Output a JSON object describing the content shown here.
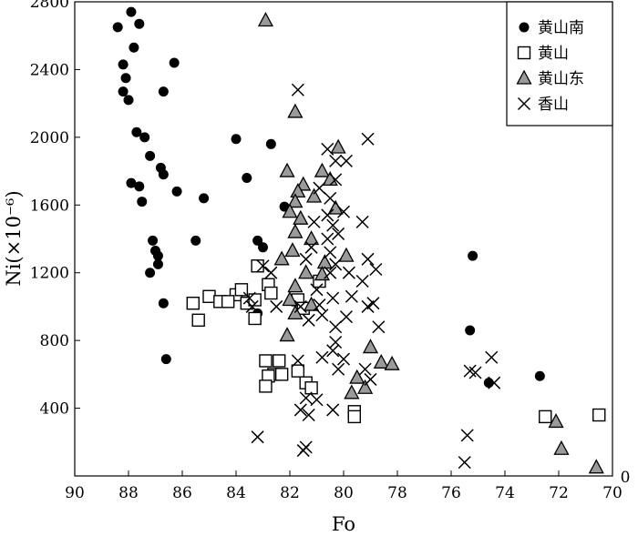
{
  "chart_data": {
    "type": "scatter",
    "title": "",
    "xlabel": "Fo",
    "ylabel": "Ni(×10⁻⁶)",
    "x_reversed": true,
    "xlim": [
      70,
      90
    ],
    "ylim": [
      0,
      2800
    ],
    "x_ticks": [
      "90",
      "88",
      "86",
      "84",
      "82",
      "80",
      "78",
      "76",
      "74",
      "72",
      "70"
    ],
    "y_ticks": [
      "2800",
      "2400",
      "2000",
      "1600",
      "1200",
      "800",
      "400"
    ],
    "y_zero_label": "0",
    "legend_position": "top-right",
    "grid": false,
    "series": [
      {
        "name": "黄山南",
        "marker": "circle",
        "points": [
          [
            88.4,
            2650
          ],
          [
            87.9,
            2740
          ],
          [
            87.6,
            2670
          ],
          [
            87.8,
            2530
          ],
          [
            88.2,
            2430
          ],
          [
            88.1,
            2350
          ],
          [
            88.2,
            2270
          ],
          [
            88.0,
            2220
          ],
          [
            86.7,
            2270
          ],
          [
            86.3,
            2440
          ],
          [
            87.7,
            2030
          ],
          [
            87.4,
            2000
          ],
          [
            87.2,
            1890
          ],
          [
            86.8,
            1820
          ],
          [
            86.7,
            1780
          ],
          [
            87.9,
            1730
          ],
          [
            87.6,
            1710
          ],
          [
            87.5,
            1620
          ],
          [
            86.2,
            1680
          ],
          [
            85.5,
            1390
          ],
          [
            87.1,
            1390
          ],
          [
            87.0,
            1330
          ],
          [
            86.9,
            1300
          ],
          [
            87.2,
            1200
          ],
          [
            86.9,
            1250
          ],
          [
            86.7,
            1020
          ],
          [
            86.6,
            690
          ],
          [
            85.2,
            1640
          ],
          [
            84.0,
            1990
          ],
          [
            83.6,
            1760
          ],
          [
            83.2,
            1390
          ],
          [
            83.0,
            1350
          ],
          [
            83.2,
            960
          ],
          [
            82.7,
            1960
          ],
          [
            82.2,
            1590
          ],
          [
            75.2,
            1300
          ],
          [
            75.3,
            860
          ],
          [
            74.6,
            550
          ],
          [
            72.7,
            590
          ]
        ]
      },
      {
        "name": "黄山",
        "marker": "square",
        "points": [
          [
            85.0,
            1060
          ],
          [
            84.6,
            1030
          ],
          [
            84.0,
            1070
          ],
          [
            84.3,
            1030
          ],
          [
            85.6,
            1020
          ],
          [
            83.6,
            1020
          ],
          [
            85.4,
            920
          ],
          [
            83.3,
            930
          ],
          [
            83.2,
            1240
          ],
          [
            83.8,
            1100
          ],
          [
            83.3,
            1040
          ],
          [
            82.8,
            1130
          ],
          [
            82.7,
            1080
          ],
          [
            81.7,
            1040
          ],
          [
            81.5,
            990
          ],
          [
            80.9,
            1150
          ],
          [
            82.9,
            680
          ],
          [
            82.4,
            680
          ],
          [
            82.6,
            600
          ],
          [
            82.8,
            590
          ],
          [
            82.3,
            600
          ],
          [
            82.9,
            530
          ],
          [
            81.7,
            620
          ],
          [
            81.4,
            550
          ],
          [
            81.2,
            520
          ],
          [
            79.6,
            380
          ],
          [
            79.6,
            350
          ],
          [
            72.5,
            350
          ],
          [
            70.5,
            360
          ]
        ]
      },
      {
        "name": "黄山东",
        "marker": "triangle",
        "points": [
          [
            82.9,
            2690
          ],
          [
            81.8,
            2150
          ],
          [
            82.1,
            1800
          ],
          [
            81.5,
            1720
          ],
          [
            80.8,
            1800
          ],
          [
            81.7,
            1680
          ],
          [
            81.1,
            1650
          ],
          [
            81.8,
            1620
          ],
          [
            82.0,
            1560
          ],
          [
            81.6,
            1520
          ],
          [
            81.8,
            1440
          ],
          [
            81.2,
            1400
          ],
          [
            81.9,
            1330
          ],
          [
            82.3,
            1280
          ],
          [
            80.7,
            1260
          ],
          [
            81.4,
            1200
          ],
          [
            80.8,
            1190
          ],
          [
            81.8,
            1120
          ],
          [
            82.0,
            1040
          ],
          [
            81.8,
            960
          ],
          [
            81.2,
            1010
          ],
          [
            82.1,
            830
          ],
          [
            80.2,
            1940
          ],
          [
            80.5,
            1750
          ],
          [
            80.3,
            1580
          ],
          [
            79.9,
            1300
          ],
          [
            79.0,
            760
          ],
          [
            78.6,
            670
          ],
          [
            78.2,
            660
          ],
          [
            79.5,
            580
          ],
          [
            79.2,
            520
          ],
          [
            79.7,
            490
          ],
          [
            72.1,
            320
          ],
          [
            71.9,
            160
          ],
          [
            70.6,
            50
          ]
        ]
      },
      {
        "name": "香山",
        "marker": "x",
        "points": [
          [
            81.7,
            2280
          ],
          [
            79.1,
            1990
          ],
          [
            79.9,
            1860
          ],
          [
            80.6,
            1930
          ],
          [
            80.3,
            1860
          ],
          [
            80.3,
            1750
          ],
          [
            80.9,
            1700
          ],
          [
            80.5,
            1640
          ],
          [
            80.0,
            1560
          ],
          [
            80.6,
            1540
          ],
          [
            81.1,
            1500
          ],
          [
            79.3,
            1500
          ],
          [
            80.4,
            1480
          ],
          [
            80.2,
            1430
          ],
          [
            80.6,
            1400
          ],
          [
            81.2,
            1350
          ],
          [
            80.5,
            1320
          ],
          [
            81.4,
            1280
          ],
          [
            80.3,
            1250
          ],
          [
            83.0,
            1240
          ],
          [
            82.7,
            1200
          ],
          [
            79.1,
            1280
          ],
          [
            78.8,
            1220
          ],
          [
            79.8,
            1200
          ],
          [
            80.5,
            1200
          ],
          [
            79.3,
            1150
          ],
          [
            81.0,
            1100
          ],
          [
            79.7,
            1060
          ],
          [
            80.4,
            1050
          ],
          [
            80.9,
            1010
          ],
          [
            78.9,
            1020
          ],
          [
            79.1,
            1000
          ],
          [
            83.5,
            1050
          ],
          [
            83.4,
            1000
          ],
          [
            82.5,
            1000
          ],
          [
            81.6,
            1000
          ],
          [
            80.8,
            950
          ],
          [
            81.3,
            920
          ],
          [
            79.9,
            940
          ],
          [
            80.3,
            880
          ],
          [
            78.7,
            880
          ],
          [
            80.3,
            790
          ],
          [
            80.4,
            740
          ],
          [
            80.8,
            700
          ],
          [
            80.0,
            690
          ],
          [
            80.2,
            630
          ],
          [
            81.7,
            680
          ],
          [
            79.2,
            630
          ],
          [
            79.0,
            570
          ],
          [
            81.4,
            460
          ],
          [
            81.0,
            450
          ],
          [
            81.6,
            390
          ],
          [
            81.3,
            360
          ],
          [
            81.5,
            150
          ],
          [
            81.4,
            170
          ],
          [
            80.4,
            390
          ],
          [
            83.2,
            230
          ],
          [
            75.3,
            620
          ],
          [
            75.1,
            610
          ],
          [
            74.5,
            700
          ],
          [
            74.4,
            550
          ],
          [
            75.4,
            240
          ],
          [
            75.5,
            80
          ]
        ]
      }
    ]
  }
}
